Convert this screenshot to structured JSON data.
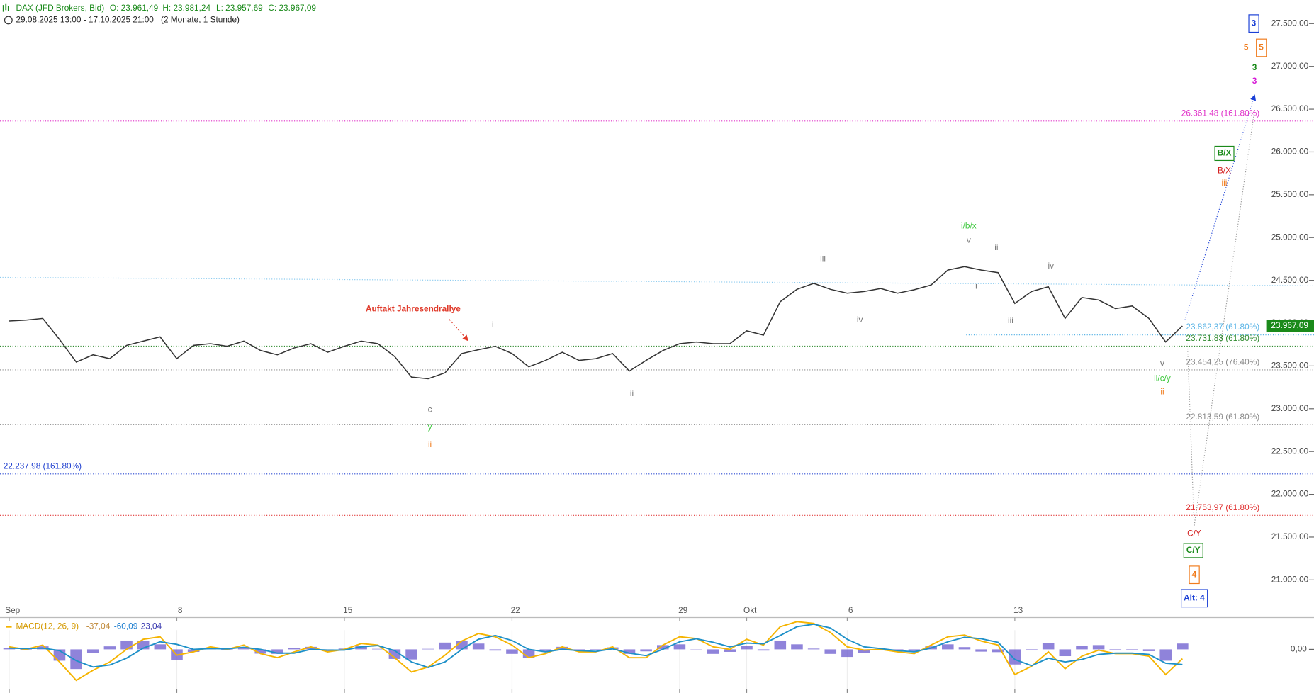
{
  "header": {
    "instrument": "DAX (JFD Brokers, Bid)",
    "ohlc": [
      "O: 23.961,49",
      "H: 23.981,24",
      "L: 23.957,69",
      "C: 23.967,09"
    ],
    "range": "29.08.2025 13:00 - 17.10.2025 21:00",
    "period": "(2 Monate, 1 Stunde)"
  },
  "chart_data": [
    {
      "type": "line",
      "categories": [
        "Sep",
        null,
        null,
        null,
        null,
        null,
        null,
        null,
        null,
        null,
        "8",
        null,
        null,
        null,
        null,
        null,
        null,
        null,
        null,
        null,
        "15",
        null,
        null,
        null,
        null,
        null,
        null,
        null,
        null,
        null,
        "22",
        null,
        null,
        null,
        null,
        null,
        null,
        null,
        null,
        null,
        "29",
        null,
        null,
        null,
        "Okt",
        null,
        null,
        null,
        null,
        null,
        "6",
        null,
        null,
        null,
        null,
        null,
        null,
        null,
        null,
        null,
        "13",
        null,
        null,
        null,
        null,
        null,
        null,
        null,
        null,
        null,
        null
      ],
      "series": [
        {
          "color": "#333333",
          "values": [
            24025,
            24035,
            24055,
            23810,
            23545,
            23630,
            23585,
            23740,
            23790,
            23840,
            23585,
            23740,
            23760,
            23730,
            23790,
            23680,
            23630,
            23710,
            23760,
            23660,
            23730,
            23790,
            23760,
            23610,
            23370,
            23350,
            23420,
            23645,
            23690,
            23730,
            23645,
            23490,
            23565,
            23660,
            23565,
            23585,
            23645,
            23440,
            23565,
            23680,
            23760,
            23780,
            23760,
            23760,
            23910,
            23860,
            24250,
            24395,
            24465,
            24395,
            24350,
            24370,
            24405,
            24350,
            24390,
            24445,
            24620,
            24660,
            24620,
            24590,
            24230,
            24370,
            24425,
            24055,
            24300,
            24270,
            24170,
            24200,
            24055,
            23780,
            23967.09
          ],
          "value_labels": [
            null,
            null,
            null,
            null,
            null,
            null,
            null,
            null,
            null,
            null,
            null,
            null,
            null,
            null,
            null,
            null,
            null,
            null,
            null,
            null,
            null,
            null,
            null,
            null,
            null,
            null,
            null,
            null,
            null,
            null,
            null,
            null,
            null,
            null,
            null,
            null,
            null,
            null,
            null,
            null,
            null,
            null,
            null,
            null,
            null,
            null,
            null,
            null,
            null,
            null,
            null,
            null,
            null,
            null,
            null,
            null,
            null,
            null,
            null,
            null,
            null,
            null,
            null,
            null,
            null,
            null,
            null,
            null,
            null,
            null,
            "23.967,09"
          ],
          "label_color": "#1a8a1a"
        }
      ],
      "ylim": [
        20560,
        27775
      ],
      "yticks": [
        {
          "value": 21000,
          "label": "21.000,00"
        },
        {
          "value": 21500,
          "label": "21.500,00"
        },
        {
          "value": 22000,
          "label": "22.000,00"
        },
        {
          "value": 22500,
          "label": "22.500,00"
        },
        {
          "value": 23000,
          "label": "23.000,00"
        },
        {
          "value": 23500,
          "label": "23.500,00"
        },
        {
          "value": 24000,
          "label": "24.000,00"
        },
        {
          "value": 24500,
          "label": "24.500,00"
        },
        {
          "value": 25000,
          "label": "25.000,00"
        },
        {
          "value": 25500,
          "label": "25.500,00"
        },
        {
          "value": 26000,
          "label": "26.000,00"
        },
        {
          "value": 26500,
          "label": "26.500,00"
        },
        {
          "value": 27000,
          "label": "27.000,00"
        },
        {
          "value": 27500,
          "label": "27.500,00"
        }
      ],
      "levels": [
        {
          "value": 26361.48,
          "label": "26.361,48 (161.80%)",
          "color": "#e02ec8"
        },
        {
          "value": 23862.37,
          "label": "23.862,37 (61.80%)",
          "color": "#5ab4e6"
        },
        {
          "value": 23731.83,
          "label": "23.731,83 (61.80%)",
          "color": "#2e8a2e"
        },
        {
          "value": 23454.25,
          "label": "23.454,25 (76.40%)",
          "color": "#888888"
        },
        {
          "value": 22813.59,
          "label": "22.813,59 (61.80%)",
          "color": "#888888"
        },
        {
          "value": 22237.98,
          "label": "22.237,98 (161.80%)",
          "color": "#2040d0"
        },
        {
          "value": 21753.97,
          "label": "21.753,97 (61.80%)",
          "color": "#e03030"
        }
      ],
      "annotations": [
        {
          "text": "Auftakt Jahresendrallye",
          "color": "#e03a2a"
        },
        {
          "text": "i",
          "color": "#777777"
        },
        {
          "text": "c",
          "color": "#777777"
        },
        {
          "text": "y",
          "color": "#3ec83e"
        },
        {
          "text": "ii",
          "color": "#f07c1e"
        },
        {
          "text": "ii",
          "color": "#777777"
        },
        {
          "text": "iii",
          "color": "#777777"
        },
        {
          "text": "iv",
          "color": "#777777"
        },
        {
          "text": "i/b/x",
          "color": "#3ec83e"
        },
        {
          "text": "v",
          "color": "#777777"
        },
        {
          "text": "ii",
          "color": "#777777"
        },
        {
          "text": "i",
          "color": "#777777"
        },
        {
          "text": "iii",
          "color": "#777777"
        },
        {
          "text": "iv",
          "color": "#777777"
        },
        {
          "text": "v",
          "color": "#777777"
        },
        {
          "text": "ii/c/y",
          "color": "#3ec83e"
        },
        {
          "text": "ii",
          "color": "#f07c1e"
        },
        {
          "text": "B/X",
          "color": "#1a8a1a",
          "boxed": true
        },
        {
          "text": "B/X",
          "color": "#d42020"
        },
        {
          "text": "iii",
          "color": "#f07c1e"
        },
        {
          "text": "C/Y",
          "color": "#d42020"
        },
        {
          "text": "C/Y",
          "color": "#1a8a1a",
          "boxed": true
        },
        {
          "text": "4",
          "color": "#f07c1e",
          "boxed": true
        },
        {
          "text": "Alt: 4",
          "color": "#1a3fd6",
          "boxed": true
        },
        {
          "text": "3",
          "color": "#1a3fd6",
          "boxed": true
        },
        {
          "text": "5",
          "color": "#f07c1e"
        },
        {
          "text": "5",
          "color": "#f07c1e",
          "boxed": true
        },
        {
          "text": "3",
          "color": "#1a8a1a"
        },
        {
          "text": "3",
          "color": "#d61ad6"
        }
      ]
    },
    {
      "type": "macd",
      "legend_title": "MACD(12, 26, 9)",
      "series": [
        {
          "name": "MACD(12, 26, 9)",
          "kind": "line",
          "color": "#f5b400",
          "values": [
            10,
            0,
            17,
            -50,
            -123,
            -83,
            -50,
            0,
            40,
            50,
            -23,
            -10,
            10,
            0,
            17,
            -17,
            -33,
            -10,
            10,
            -10,
            0,
            23,
            17,
            -33,
            -90,
            -70,
            -23,
            33,
            63,
            50,
            17,
            -33,
            -17,
            10,
            -10,
            -10,
            10,
            -33,
            -33,
            17,
            50,
            43,
            10,
            0,
            40,
            17,
            90,
            110,
            103,
            67,
            10,
            -3,
            0,
            -10,
            -17,
            17,
            50,
            57,
            33,
            17,
            -100,
            -67,
            -10,
            -77,
            -27,
            -3,
            -17,
            -17,
            -27,
            -100,
            -37.04
          ],
          "value_labels": [
            null,
            null,
            null,
            null,
            null,
            null,
            null,
            null,
            null,
            null,
            null,
            null,
            null,
            null,
            null,
            null,
            null,
            null,
            null,
            null,
            null,
            null,
            null,
            null,
            null,
            null,
            null,
            null,
            null,
            null,
            null,
            null,
            null,
            null,
            null,
            null,
            null,
            null,
            null,
            null,
            null,
            null,
            null,
            null,
            null,
            null,
            null,
            null,
            null,
            null,
            null,
            null,
            null,
            null,
            null,
            null,
            null,
            null,
            null,
            null,
            null,
            null,
            null,
            null,
            null,
            null,
            null,
            null,
            null,
            null,
            "-37,04"
          ],
          "label_color": "#c08a3a"
        },
        {
          "kind": "line",
          "color": "#1e90c8",
          "values": [
            5,
            3,
            5,
            -5,
            -45,
            -70,
            -62,
            -35,
            5,
            30,
            20,
            0,
            3,
            2,
            8,
            0,
            -15,
            -15,
            0,
            -3,
            -3,
            10,
            15,
            -5,
            -50,
            -72,
            -50,
            0,
            40,
            55,
            35,
            0,
            -10,
            0,
            -5,
            -8,
            2,
            -15,
            -25,
            0,
            30,
            42,
            28,
            10,
            25,
            22,
            55,
            90,
            100,
            85,
            40,
            10,
            3,
            -5,
            -10,
            5,
            30,
            48,
            42,
            28,
            -40,
            -65,
            -35,
            -50,
            -40,
            -20,
            -15,
            -15,
            -20,
            -55,
            -60.09
          ],
          "value_labels": [
            null,
            null,
            null,
            null,
            null,
            null,
            null,
            null,
            null,
            null,
            null,
            null,
            null,
            null,
            null,
            null,
            null,
            null,
            null,
            null,
            null,
            null,
            null,
            null,
            null,
            null,
            null,
            null,
            null,
            null,
            null,
            null,
            null,
            null,
            null,
            null,
            null,
            null,
            null,
            null,
            null,
            null,
            null,
            null,
            null,
            null,
            null,
            null,
            null,
            null,
            null,
            null,
            null,
            null,
            null,
            null,
            null,
            null,
            null,
            null,
            null,
            null,
            null,
            null,
            null,
            null,
            null,
            null,
            null,
            null,
            "-60,09"
          ],
          "label_color": "#1e7fd0"
        },
        {
          "kind": "histogram",
          "color": "#6a5acd",
          "values": [
            5,
            -3,
            12,
            -45,
            -78,
            -13,
            12,
            35,
            35,
            20,
            -43,
            -10,
            7,
            -2,
            9,
            -17,
            -18,
            5,
            10,
            -7,
            3,
            13,
            2,
            -38,
            -40,
            2,
            27,
            33,
            23,
            -5,
            -18,
            -33,
            -7,
            10,
            -5,
            -2,
            8,
            -18,
            -8,
            17,
            20,
            1,
            -18,
            -10,
            15,
            -5,
            35,
            20,
            3,
            -18,
            -30,
            -13,
            -3,
            -5,
            -7,
            12,
            20,
            9,
            -9,
            -11,
            -60,
            -2,
            25,
            -27,
            13,
            17,
            -2,
            -2,
            -7,
            -45,
            23.04
          ],
          "value_labels": [
            null,
            null,
            null,
            null,
            null,
            null,
            null,
            null,
            null,
            null,
            null,
            null,
            null,
            null,
            null,
            null,
            null,
            null,
            null,
            null,
            null,
            null,
            null,
            null,
            null,
            null,
            null,
            null,
            null,
            null,
            null,
            null,
            null,
            null,
            null,
            null,
            null,
            null,
            null,
            null,
            null,
            null,
            null,
            null,
            null,
            null,
            null,
            null,
            null,
            null,
            null,
            null,
            null,
            null,
            null,
            null,
            null,
            null,
            null,
            null,
            null,
            null,
            null,
            null,
            null,
            null,
            null,
            null,
            null,
            null,
            "23,04"
          ],
          "label_color": "#3a3ab0"
        }
      ],
      "ylim": [
        -173,
        123
      ],
      "yticks": [
        {
          "value": 0,
          "label": "0,00"
        }
      ]
    }
  ]
}
